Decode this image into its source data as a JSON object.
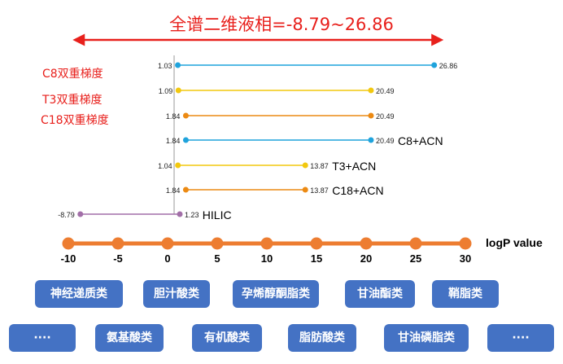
{
  "header": {
    "title": "全谱二维液相=-8.79~26.86"
  },
  "methods": [
    "C8双重梯度",
    "T3双重梯度",
    "C18双重梯度"
  ],
  "chart_data": {
    "type": "range-line",
    "axis": {
      "min": -10,
      "max": 30,
      "ticks": [
        -10,
        -5,
        0,
        5,
        10,
        15,
        20,
        25,
        30
      ],
      "label": "logP value"
    },
    "overall_range": [
      -8.79,
      26.86
    ],
    "series": [
      {
        "name": "",
        "start": 1.03,
        "end": 26.86,
        "start_label": "1.03",
        "end_label": "26.86",
        "color": "#1fa3dc"
      },
      {
        "name": "",
        "start": 1.09,
        "end": 20.49,
        "start_label": "1.09",
        "end_label": "20.49",
        "color": "#f2c80f"
      },
      {
        "name": "",
        "start": 1.84,
        "end": 20.49,
        "start_label": "1.84",
        "end_label": "20.49",
        "color": "#ec8a13"
      },
      {
        "name": "C8+ACN",
        "start": 1.84,
        "end": 20.49,
        "start_label": "1.84",
        "end_label": "20.49",
        "color": "#1fa3dc"
      },
      {
        "name": "T3+ACN",
        "start": 1.04,
        "end": 13.87,
        "start_label": "1.04",
        "end_label": "13.87",
        "color": "#f2c80f"
      },
      {
        "name": "C18+ACN",
        "start": 1.84,
        "end": 13.87,
        "start_label": "1.84",
        "end_label": "13.87",
        "color": "#ec8a13"
      },
      {
        "name": "HILIC",
        "start": -8.79,
        "end": 1.23,
        "start_label": "-8.79",
        "end_label": "1.23",
        "color": "#a26fa8"
      }
    ]
  },
  "categories": {
    "row1": [
      "神经递质类",
      "胆汁酸类",
      "孕烯醇酮脂类",
      "甘油酯类",
      "鞘脂类"
    ],
    "row2": [
      "····",
      "氨基酸类",
      "有机酸类",
      "脂肪酸类",
      "甘油磷脂类",
      "····"
    ]
  },
  "colors": {
    "title": "#e8201c",
    "axis": "#ed7d31",
    "tag": "#4472c4"
  }
}
